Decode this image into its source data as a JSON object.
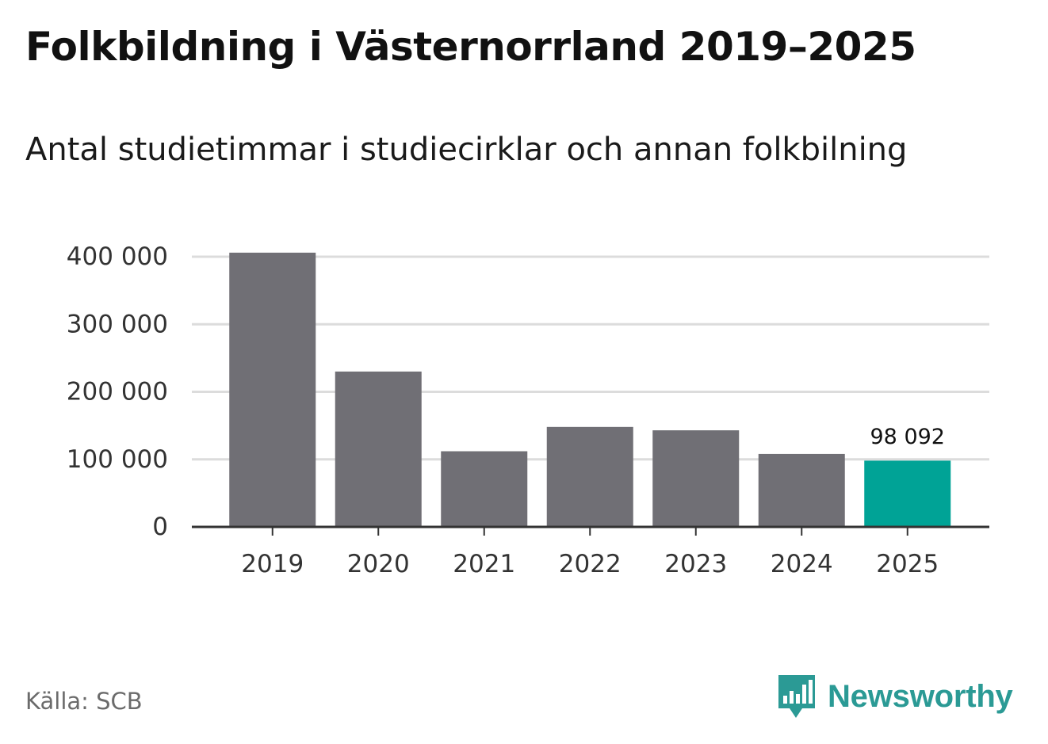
{
  "header": {
    "title": "Folkbildning i Västernorrland 2019–2025",
    "subtitle": "Antal studietimmar i studiecirklar och annan folkbilning"
  },
  "footer": {
    "source": "Källa: SCB",
    "brand": "Newsworthy"
  },
  "colors": {
    "bar": "#706f75",
    "highlight": "#00a396",
    "grid": "#dcdcdc",
    "axis": "#333333",
    "tick_text": "#333333",
    "brand": "#2b9a95"
  },
  "chart_data": {
    "type": "bar",
    "title": "Folkbildning i Västernorrland 2019–2025",
    "subtitle": "Antal studietimmar i studiecirklar och annan folkbilning",
    "xlabel": "",
    "ylabel": "",
    "categories": [
      "2019",
      "2020",
      "2021",
      "2022",
      "2023",
      "2024",
      "2025"
    ],
    "values": [
      406000,
      230000,
      112000,
      148000,
      143000,
      108000,
      98092
    ],
    "highlight_index": 6,
    "data_labels": [
      {
        "index": 6,
        "text": "98 092"
      }
    ],
    "ylim": [
      0,
      400000
    ],
    "yticks": [
      0,
      100000,
      200000,
      300000,
      400000
    ],
    "ytick_labels": [
      "0",
      "100 000",
      "200 000",
      "300 000",
      "400 000"
    ],
    "grid": true
  }
}
